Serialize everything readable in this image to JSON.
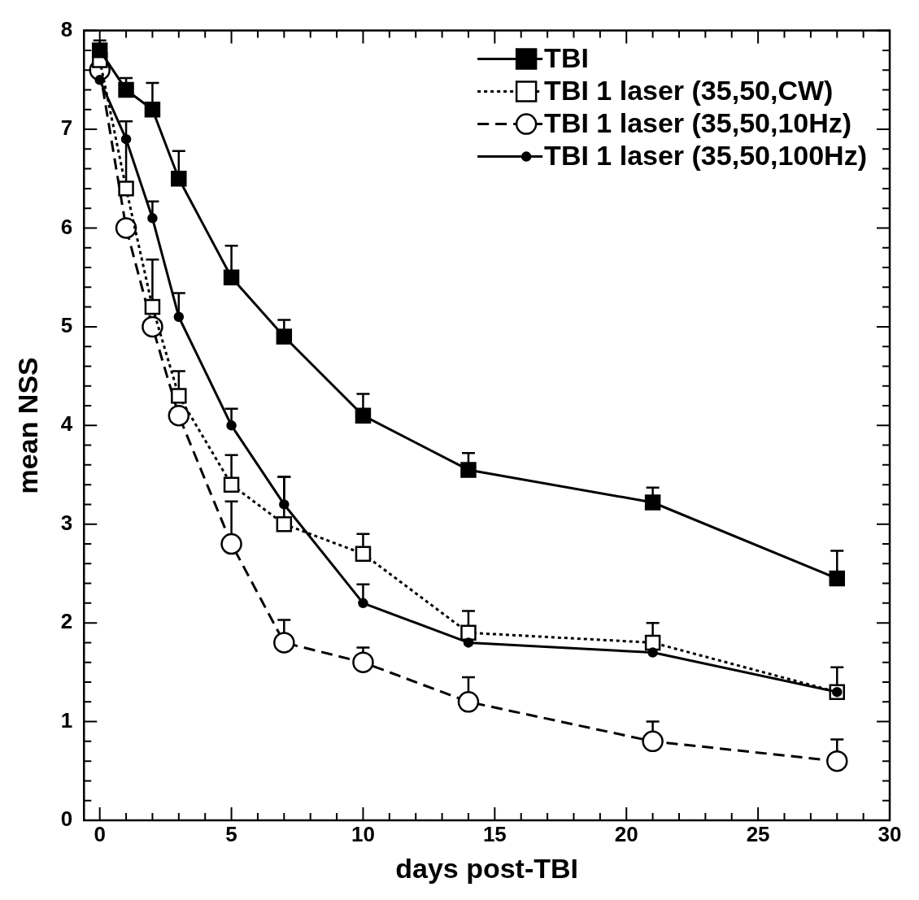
{
  "chart_data": {
    "type": "line",
    "xlabel": "days post-TBI",
    "ylabel": "mean NSS",
    "legend": "top right",
    "grid": false,
    "x": [
      0,
      1,
      2,
      3,
      5,
      7,
      10,
      14,
      21,
      28
    ],
    "xlim": [
      -0.6,
      30
    ],
    "ylim": [
      0,
      8
    ],
    "xticks": [
      0,
      {
        "value": 1,
        "label": null
      },
      {
        "value": 2,
        "label": null
      },
      {
        "value": 3,
        "label": null
      },
      {
        "value": 4,
        "label": null
      },
      5,
      {
        "value": 6,
        "label": null
      },
      {
        "value": 7,
        "label": null
      },
      {
        "value": 8,
        "label": null
      },
      {
        "value": 9,
        "label": null
      },
      10,
      {
        "value": 11,
        "label": null
      },
      {
        "value": 12,
        "label": null
      },
      {
        "value": 13,
        "label": null
      },
      {
        "value": 14,
        "label": null
      },
      15,
      {
        "value": 16,
        "label": null
      },
      {
        "value": 17,
        "label": null
      },
      {
        "value": 18,
        "label": null
      },
      {
        "value": 19,
        "label": null
      },
      20,
      {
        "value": 21,
        "label": null
      },
      {
        "value": 22,
        "label": null
      },
      {
        "value": 23,
        "label": null
      },
      {
        "value": 24,
        "label": null
      },
      25,
      {
        "value": 26,
        "label": null
      },
      {
        "value": 27,
        "label": null
      },
      {
        "value": 28,
        "label": null
      },
      {
        "value": 29,
        "label": null
      },
      30
    ],
    "yticks": [
      0,
      {
        "value": 0.2,
        "label": null
      },
      {
        "value": 0.4,
        "label": null
      },
      {
        "value": 0.6,
        "label": null
      },
      {
        "value": 0.8,
        "label": null
      },
      1,
      {
        "value": 1.2,
        "label": null
      },
      {
        "value": 1.4,
        "label": null
      },
      {
        "value": 1.6,
        "label": null
      },
      {
        "value": 1.8,
        "label": null
      },
      2,
      {
        "value": 2.2,
        "label": null
      },
      {
        "value": 2.4,
        "label": null
      },
      {
        "value": 2.6,
        "label": null
      },
      {
        "value": 2.8,
        "label": null
      },
      3,
      {
        "value": 3.2,
        "label": null
      },
      {
        "value": 3.4,
        "label": null
      },
      {
        "value": 3.6,
        "label": null
      },
      {
        "value": 3.8,
        "label": null
      },
      4,
      {
        "value": 4.2,
        "label": null
      },
      {
        "value": 4.4,
        "label": null
      },
      {
        "value": 4.6,
        "label": null
      },
      {
        "value": 4.8,
        "label": null
      },
      5,
      {
        "value": 5.2,
        "label": null
      },
      {
        "value": 5.4,
        "label": null
      },
      {
        "value": 5.6,
        "label": null
      },
      {
        "value": 5.8,
        "label": null
      },
      6,
      {
        "value": 6.2,
        "label": null
      },
      {
        "value": 6.4,
        "label": null
      },
      {
        "value": 6.6,
        "label": null
      },
      {
        "value": 6.8,
        "label": null
      },
      7,
      {
        "value": 7.2,
        "label": null
      },
      {
        "value": 7.4,
        "label": null
      },
      {
        "value": 7.6,
        "label": null
      },
      {
        "value": 7.8,
        "label": null
      },
      8
    ],
    "series": [
      {
        "name": "TBI",
        "color": "#000000",
        "marker": "square",
        "line_style": "solid",
        "values": [
          7.8,
          7.4,
          7.2,
          6.5,
          5.5,
          4.9,
          4.1,
          3.55,
          3.22,
          2.45
        ],
        "errors": [
          [
            7.8,
            7.9
          ],
          [
            7.4,
            7.52
          ],
          [
            7.2,
            7.47
          ],
          [
            6.5,
            6.78
          ],
          [
            5.5,
            5.82
          ],
          [
            4.9,
            5.07
          ],
          [
            4.1,
            4.32
          ],
          [
            3.55,
            3.72
          ],
          [
            3.22,
            3.37
          ],
          [
            2.45,
            2.73
          ]
        ]
      },
      {
        "name": "TBI 1 laser (35,50,CW)",
        "color": "#000000",
        "marker": "square",
        "line_style": "dotted",
        "values": [
          7.7,
          6.4,
          5.2,
          4.3,
          3.4,
          3.0,
          2.7,
          1.9,
          1.8,
          1.3
        ],
        "errors": [
          null,
          [
            6.4,
            7.08
          ],
          [
            5.2,
            5.68
          ],
          [
            4.3,
            4.55
          ],
          [
            3.4,
            3.7
          ],
          [
            3.0,
            3.48
          ],
          [
            2.7,
            2.9
          ],
          [
            1.9,
            2.12
          ],
          [
            1.8,
            2.0
          ],
          [
            1.3,
            1.55
          ]
        ]
      },
      {
        "name": "TBI 1 laser (35,50,10Hz)",
        "color": "#000000",
        "marker": "circle",
        "line_style": "dashed",
        "values": [
          7.6,
          6.0,
          5.0,
          4.1,
          2.8,
          1.8,
          1.6,
          1.2,
          0.8,
          0.6
        ],
        "errors": [
          null,
          null,
          null,
          null,
          [
            2.8,
            3.23
          ],
          [
            1.8,
            2.03
          ],
          [
            1.6,
            1.75
          ],
          [
            1.2,
            1.45
          ],
          [
            0.8,
            1.0
          ],
          [
            0.6,
            0.82
          ]
        ]
      },
      {
        "name": "TBI 1 laser (35,50,100Hz)",
        "color": "#000000",
        "marker": "circle",
        "line_style": "solid",
        "values": [
          7.5,
          6.9,
          6.1,
          5.1,
          4.0,
          3.2,
          2.2,
          1.8,
          1.7,
          1.3
        ],
        "errors": [
          null,
          null,
          [
            6.1,
            6.27
          ],
          [
            5.1,
            5.34
          ],
          [
            4.0,
            4.17
          ],
          [
            3.2,
            3.48
          ],
          [
            2.2,
            2.39
          ],
          null,
          null,
          null
        ]
      }
    ]
  }
}
